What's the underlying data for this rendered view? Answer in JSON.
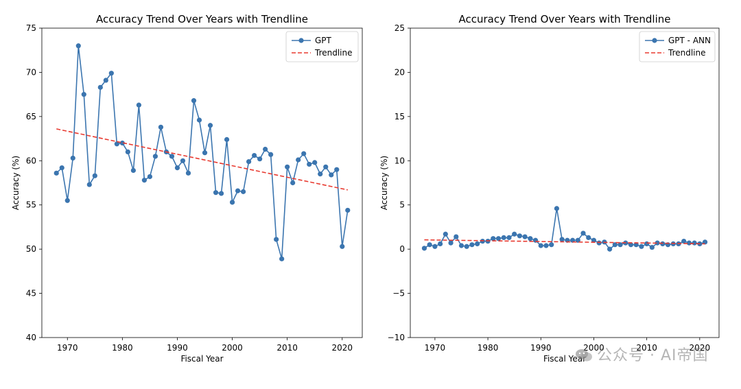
{
  "colors": {
    "series": "#3b75af",
    "trend": "#e8392f"
  },
  "watermark": {
    "text": "公众号 · AI帝国",
    "icon": "wechat-icon"
  },
  "chart_data": [
    {
      "type": "line",
      "title": "Accuracy Trend Over Years with Trendline",
      "xlabel": "Fiscal Year",
      "ylabel": "Accuracy (%)",
      "xlim": [
        1965.35,
        2023.65
      ],
      "ylim": [
        40,
        75
      ],
      "xticks": [
        1970,
        1980,
        1990,
        2000,
        2010,
        2020
      ],
      "yticks": [
        40,
        45,
        50,
        55,
        60,
        65,
        70,
        75
      ],
      "legend_position": "top-right",
      "series": [
        {
          "name": "GPT",
          "x": [
            1968,
            1969,
            1970,
            1971,
            1972,
            1973,
            1974,
            1975,
            1976,
            1977,
            1978,
            1979,
            1980,
            1981,
            1982,
            1983,
            1984,
            1985,
            1986,
            1987,
            1988,
            1989,
            1990,
            1991,
            1992,
            1993,
            1994,
            1995,
            1996,
            1997,
            1998,
            1999,
            2000,
            2001,
            2002,
            2003,
            2004,
            2005,
            2006,
            2007,
            2008,
            2009,
            2010,
            2011,
            2012,
            2013,
            2014,
            2015,
            2016,
            2017,
            2018,
            2019,
            2020,
            2021
          ],
          "values": [
            58.6,
            59.2,
            55.5,
            60.3,
            73.0,
            67.5,
            57.3,
            58.3,
            68.3,
            69.1,
            69.9,
            61.9,
            62.0,
            61.0,
            58.9,
            66.3,
            57.8,
            58.2,
            60.5,
            63.8,
            61.0,
            60.5,
            59.2,
            60.0,
            58.6,
            66.8,
            64.6,
            60.9,
            64.0,
            56.4,
            56.3,
            62.4,
            55.3,
            56.6,
            56.5,
            59.9,
            60.6,
            60.2,
            61.3,
            60.7,
            51.1,
            48.9,
            59.3,
            57.5,
            60.1,
            60.8,
            59.6,
            59.8,
            58.5,
            59.3,
            58.4,
            59.0,
            50.3,
            54.4
          ]
        },
        {
          "name": "Trendline",
          "style": "dashed",
          "x": [
            1968,
            2021
          ],
          "values": [
            63.6,
            56.7
          ]
        }
      ]
    },
    {
      "type": "line",
      "title": "Accuracy Trend Over Years with Trendline",
      "xlabel": "Fiscal Year",
      "ylabel": "Accuracy (%)",
      "xlim": [
        1965.35,
        2023.65
      ],
      "ylim": [
        -10,
        25
      ],
      "xticks": [
        1970,
        1980,
        1990,
        2000,
        2010,
        2020
      ],
      "yticks": [
        -10,
        -5,
        0,
        5,
        10,
        15,
        20,
        25
      ],
      "legend_position": "top-right",
      "series": [
        {
          "name": "GPT - ANN",
          "x": [
            1968,
            1969,
            1970,
            1971,
            1972,
            1973,
            1974,
            1975,
            1976,
            1977,
            1978,
            1979,
            1980,
            1981,
            1982,
            1983,
            1984,
            1985,
            1986,
            1987,
            1988,
            1989,
            1990,
            1991,
            1992,
            1993,
            1994,
            1995,
            1996,
            1997,
            1998,
            1999,
            2000,
            2001,
            2002,
            2003,
            2004,
            2005,
            2006,
            2007,
            2008,
            2009,
            2010,
            2011,
            2012,
            2013,
            2014,
            2015,
            2016,
            2017,
            2018,
            2019,
            2020,
            2021
          ],
          "values": [
            0.1,
            0.5,
            0.3,
            0.6,
            1.7,
            0.7,
            1.4,
            0.4,
            0.3,
            0.5,
            0.6,
            0.9,
            0.9,
            1.2,
            1.2,
            1.3,
            1.3,
            1.7,
            1.5,
            1.4,
            1.2,
            1.0,
            0.4,
            0.4,
            0.5,
            4.6,
            1.1,
            1.0,
            1.0,
            1.0,
            1.8,
            1.3,
            1.0,
            0.7,
            0.8,
            0.0,
            0.5,
            0.5,
            0.7,
            0.5,
            0.5,
            0.3,
            0.6,
            0.2,
            0.7,
            0.6,
            0.5,
            0.6,
            0.6,
            0.9,
            0.7,
            0.7,
            0.6,
            0.8
          ]
        },
        {
          "name": "Trendline",
          "style": "dashed",
          "x": [
            1968,
            2021
          ],
          "values": [
            1.05,
            0.6
          ]
        }
      ]
    }
  ]
}
